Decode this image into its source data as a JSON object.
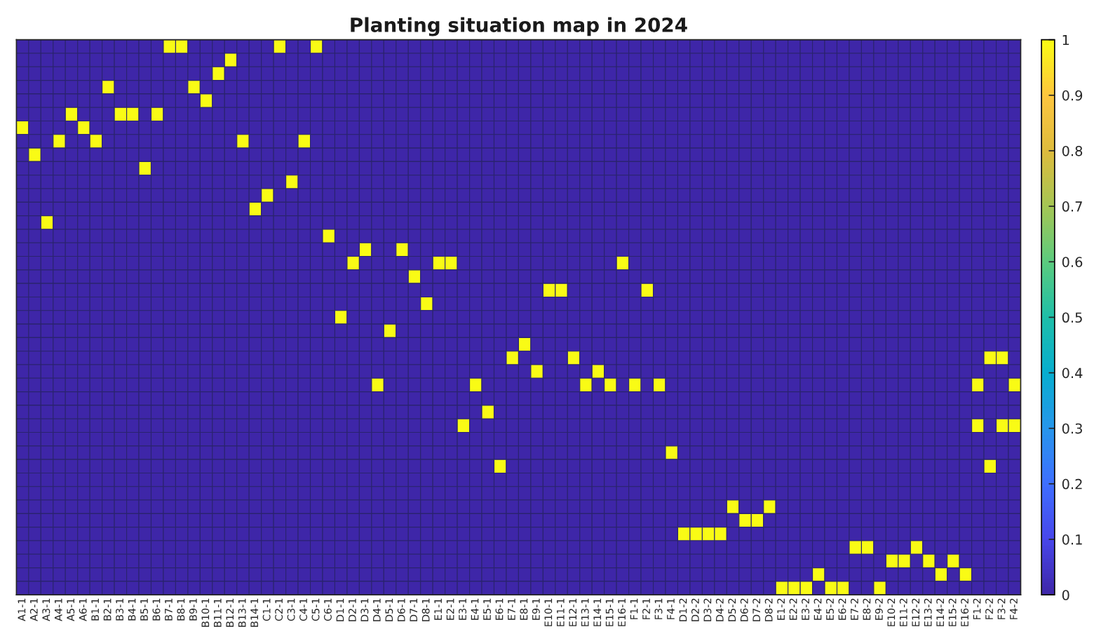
{
  "chart_data": {
    "type": "heatmap",
    "title": "Planting situation map in 2024",
    "categories": [
      "A1-1",
      "A2-1",
      "A3-1",
      "A4-1",
      "A5-1",
      "A6-1",
      "B1-1",
      "B2-1",
      "B3-1",
      "B4-1",
      "B5-1",
      "B6-1",
      "B7-1",
      "B8-1",
      "B9-1",
      "B10-1",
      "B11-1",
      "B12-1",
      "B13-1",
      "B14-1",
      "C1-1",
      "C2-1",
      "C3-1",
      "C4-1",
      "C5-1",
      "C6-1",
      "D1-1",
      "D2-1",
      "D3-1",
      "D4-1",
      "D5-1",
      "D6-1",
      "D7-1",
      "D8-1",
      "E1-1",
      "E2-1",
      "E3-1",
      "E4-1",
      "E5-1",
      "E6-1",
      "E7-1",
      "E8-1",
      "E9-1",
      "E10-1",
      "E11-1",
      "E12-1",
      "E13-1",
      "E14-1",
      "E15-1",
      "E16-1",
      "F1-1",
      "F2-1",
      "F3-1",
      "F4-1",
      "D1-2",
      "D2-2",
      "D3-2",
      "D4-2",
      "D5-2",
      "D6-2",
      "D7-2",
      "D8-2",
      "E1-2",
      "E2-2",
      "E3-2",
      "E4-2",
      "E5-2",
      "E6-2",
      "E7-2",
      "E8-2",
      "E9-2",
      "E10-2",
      "E11-2",
      "E12-2",
      "E13-2",
      "E14-2",
      "E15-2",
      "E16-2",
      "F1-2",
      "F2-2",
      "F3-2",
      "F4-2"
    ],
    "y_categories": [
      null,
      null,
      null,
      null,
      null,
      null,
      null,
      null,
      null,
      null,
      null,
      null,
      null,
      null,
      null,
      null,
      null,
      null,
      null,
      null,
      null,
      null,
      null,
      null,
      null,
      null,
      null,
      null,
      null,
      null,
      null,
      null,
      null,
      null,
      null,
      null,
      null,
      null,
      null,
      null,
      null
    ],
    "cells": [
      [
        0,
        0,
        0,
        0,
        0,
        0,
        0,
        0,
        0,
        0,
        0,
        0,
        1,
        1,
        0,
        0,
        0,
        0,
        0,
        0,
        0,
        1,
        0,
        0,
        1,
        0,
        0,
        0,
        0,
        0,
        0,
        0,
        0,
        0,
        0,
        0,
        0,
        0,
        0,
        0,
        0,
        0,
        0,
        0,
        0,
        0,
        0,
        0,
        0,
        0,
        0,
        0,
        0,
        0,
        0,
        0,
        0,
        0,
        0,
        0,
        0,
        0,
        0,
        0,
        0,
        0,
        0,
        0,
        0,
        0,
        0,
        0,
        0,
        0,
        0,
        0,
        0,
        0,
        0,
        0,
        0,
        0
      ],
      [
        0,
        0,
        0,
        0,
        0,
        0,
        0,
        0,
        0,
        0,
        0,
        0,
        0,
        0,
        0,
        0,
        0,
        1,
        0,
        0,
        0,
        0,
        0,
        0,
        0,
        0,
        0,
        0,
        0,
        0,
        0,
        0,
        0,
        0,
        0,
        0,
        0,
        0,
        0,
        0,
        0,
        0,
        0,
        0,
        0,
        0,
        0,
        0,
        0,
        0,
        0,
        0,
        0,
        0,
        0,
        0,
        0,
        0,
        0,
        0,
        0,
        0,
        0,
        0,
        0,
        0,
        0,
        0,
        0,
        0,
        0,
        0,
        0,
        0,
        0,
        0,
        0,
        0,
        0,
        0,
        0,
        0
      ],
      [
        0,
        0,
        0,
        0,
        0,
        0,
        0,
        0,
        0,
        0,
        0,
        0,
        0,
        0,
        0,
        0,
        1,
        0,
        0,
        0,
        0,
        0,
        0,
        0,
        0,
        0,
        0,
        0,
        0,
        0,
        0,
        0,
        0,
        0,
        0,
        0,
        0,
        0,
        0,
        0,
        0,
        0,
        0,
        0,
        0,
        0,
        0,
        0,
        0,
        0,
        0,
        0,
        0,
        0,
        0,
        0,
        0,
        0,
        0,
        0,
        0,
        0,
        0,
        0,
        0,
        0,
        0,
        0,
        0,
        0,
        0,
        0,
        0,
        0,
        0,
        0,
        0,
        0,
        0,
        0,
        0,
        0
      ],
      [
        0,
        0,
        0,
        0,
        0,
        0,
        0,
        1,
        0,
        0,
        0,
        0,
        0,
        0,
        1,
        0,
        0,
        0,
        0,
        0,
        0,
        0,
        0,
        0,
        0,
        0,
        0,
        0,
        0,
        0,
        0,
        0,
        0,
        0,
        0,
        0,
        0,
        0,
        0,
        0,
        0,
        0,
        0,
        0,
        0,
        0,
        0,
        0,
        0,
        0,
        0,
        0,
        0,
        0,
        0,
        0,
        0,
        0,
        0,
        0,
        0,
        0,
        0,
        0,
        0,
        0,
        0,
        0,
        0,
        0,
        0,
        0,
        0,
        0,
        0,
        0,
        0,
        0,
        0,
        0,
        0,
        0
      ],
      [
        0,
        0,
        0,
        0,
        0,
        0,
        0,
        0,
        0,
        0,
        0,
        0,
        0,
        0,
        0,
        1,
        0,
        0,
        0,
        0,
        0,
        0,
        0,
        0,
        0,
        0,
        0,
        0,
        0,
        0,
        0,
        0,
        0,
        0,
        0,
        0,
        0,
        0,
        0,
        0,
        0,
        0,
        0,
        0,
        0,
        0,
        0,
        0,
        0,
        0,
        0,
        0,
        0,
        0,
        0,
        0,
        0,
        0,
        0,
        0,
        0,
        0,
        0,
        0,
        0,
        0,
        0,
        0,
        0,
        0,
        0,
        0,
        0,
        0,
        0,
        0,
        0,
        0,
        0,
        0,
        0,
        0
      ],
      [
        0,
        0,
        0,
        0,
        1,
        0,
        0,
        0,
        1,
        1,
        0,
        1,
        0,
        0,
        0,
        0,
        0,
        0,
        0,
        0,
        0,
        0,
        0,
        0,
        0,
        0,
        0,
        0,
        0,
        0,
        0,
        0,
        0,
        0,
        0,
        0,
        0,
        0,
        0,
        0,
        0,
        0,
        0,
        0,
        0,
        0,
        0,
        0,
        0,
        0,
        0,
        0,
        0,
        0,
        0,
        0,
        0,
        0,
        0,
        0,
        0,
        0,
        0,
        0,
        0,
        0,
        0,
        0,
        0,
        0,
        0,
        0,
        0,
        0,
        0,
        0,
        0,
        0,
        0,
        0,
        0,
        0
      ],
      [
        1,
        0,
        0,
        0,
        0,
        1,
        0,
        0,
        0,
        0,
        0,
        0,
        0,
        0,
        0,
        0,
        0,
        0,
        0,
        0,
        0,
        0,
        0,
        0,
        0,
        0,
        0,
        0,
        0,
        0,
        0,
        0,
        0,
        0,
        0,
        0,
        0,
        0,
        0,
        0,
        0,
        0,
        0,
        0,
        0,
        0,
        0,
        0,
        0,
        0,
        0,
        0,
        0,
        0,
        0,
        0,
        0,
        0,
        0,
        0,
        0,
        0,
        0,
        0,
        0,
        0,
        0,
        0,
        0,
        0,
        0,
        0,
        0,
        0,
        0,
        0,
        0,
        0,
        0,
        0,
        0,
        0
      ],
      [
        0,
        0,
        0,
        1,
        0,
        0,
        1,
        0,
        0,
        0,
        0,
        0,
        0,
        0,
        0,
        0,
        0,
        0,
        1,
        0,
        0,
        0,
        0,
        1,
        0,
        0,
        0,
        0,
        0,
        0,
        0,
        0,
        0,
        0,
        0,
        0,
        0,
        0,
        0,
        0,
        0,
        0,
        0,
        0,
        0,
        0,
        0,
        0,
        0,
        0,
        0,
        0,
        0,
        0,
        0,
        0,
        0,
        0,
        0,
        0,
        0,
        0,
        0,
        0,
        0,
        0,
        0,
        0,
        0,
        0,
        0,
        0,
        0,
        0,
        0,
        0,
        0,
        0,
        0,
        0,
        0,
        0
      ],
      [
        0,
        1,
        0,
        0,
        0,
        0,
        0,
        0,
        0,
        0,
        0,
        0,
        0,
        0,
        0,
        0,
        0,
        0,
        0,
        0,
        0,
        0,
        0,
        0,
        0,
        0,
        0,
        0,
        0,
        0,
        0,
        0,
        0,
        0,
        0,
        0,
        0,
        0,
        0,
        0,
        0,
        0,
        0,
        0,
        0,
        0,
        0,
        0,
        0,
        0,
        0,
        0,
        0,
        0,
        0,
        0,
        0,
        0,
        0,
        0,
        0,
        0,
        0,
        0,
        0,
        0,
        0,
        0,
        0,
        0,
        0,
        0,
        0,
        0,
        0,
        0,
        0,
        0,
        0,
        0,
        0,
        0
      ],
      [
        0,
        0,
        0,
        0,
        0,
        0,
        0,
        0,
        0,
        0,
        1,
        0,
        0,
        0,
        0,
        0,
        0,
        0,
        0,
        0,
        0,
        0,
        0,
        0,
        0,
        0,
        0,
        0,
        0,
        0,
        0,
        0,
        0,
        0,
        0,
        0,
        0,
        0,
        0,
        0,
        0,
        0,
        0,
        0,
        0,
        0,
        0,
        0,
        0,
        0,
        0,
        0,
        0,
        0,
        0,
        0,
        0,
        0,
        0,
        0,
        0,
        0,
        0,
        0,
        0,
        0,
        0,
        0,
        0,
        0,
        0,
        0,
        0,
        0,
        0,
        0,
        0,
        0,
        0,
        0,
        0,
        0
      ],
      [
        0,
        0,
        0,
        0,
        0,
        0,
        0,
        0,
        0,
        0,
        0,
        0,
        0,
        0,
        0,
        0,
        0,
        0,
        0,
        0,
        0,
        0,
        1,
        0,
        0,
        0,
        0,
        0,
        0,
        0,
        0,
        0,
        0,
        0,
        0,
        0,
        0,
        0,
        0,
        0,
        0,
        0,
        0,
        0,
        0,
        0,
        0,
        0,
        0,
        0,
        0,
        0,
        0,
        0,
        0,
        0,
        0,
        0,
        0,
        0,
        0,
        0,
        0,
        0,
        0,
        0,
        0,
        0,
        0,
        0,
        0,
        0,
        0,
        0,
        0,
        0,
        0,
        0,
        0,
        0,
        0,
        0
      ],
      [
        0,
        0,
        0,
        0,
        0,
        0,
        0,
        0,
        0,
        0,
        0,
        0,
        0,
        0,
        0,
        0,
        0,
        0,
        0,
        0,
        1,
        0,
        0,
        0,
        0,
        0,
        0,
        0,
        0,
        0,
        0,
        0,
        0,
        0,
        0,
        0,
        0,
        0,
        0,
        0,
        0,
        0,
        0,
        0,
        0,
        0,
        0,
        0,
        0,
        0,
        0,
        0,
        0,
        0,
        0,
        0,
        0,
        0,
        0,
        0,
        0,
        0,
        0,
        0,
        0,
        0,
        0,
        0,
        0,
        0,
        0,
        0,
        0,
        0,
        0,
        0,
        0,
        0,
        0,
        0,
        0,
        0
      ],
      [
        0,
        0,
        0,
        0,
        0,
        0,
        0,
        0,
        0,
        0,
        0,
        0,
        0,
        0,
        0,
        0,
        0,
        0,
        0,
        1,
        0,
        0,
        0,
        0,
        0,
        0,
        0,
        0,
        0,
        0,
        0,
        0,
        0,
        0,
        0,
        0,
        0,
        0,
        0,
        0,
        0,
        0,
        0,
        0,
        0,
        0,
        0,
        0,
        0,
        0,
        0,
        0,
        0,
        0,
        0,
        0,
        0,
        0,
        0,
        0,
        0,
        0,
        0,
        0,
        0,
        0,
        0,
        0,
        0,
        0,
        0,
        0,
        0,
        0,
        0,
        0,
        0,
        0,
        0,
        0,
        0,
        0
      ],
      [
        0,
        0,
        1,
        0,
        0,
        0,
        0,
        0,
        0,
        0,
        0,
        0,
        0,
        0,
        0,
        0,
        0,
        0,
        0,
        0,
        0,
        0,
        0,
        0,
        0,
        0,
        0,
        0,
        0,
        0,
        0,
        0,
        0,
        0,
        0,
        0,
        0,
        0,
        0,
        0,
        0,
        0,
        0,
        0,
        0,
        0,
        0,
        0,
        0,
        0,
        0,
        0,
        0,
        0,
        0,
        0,
        0,
        0,
        0,
        0,
        0,
        0,
        0,
        0,
        0,
        0,
        0,
        0,
        0,
        0,
        0,
        0,
        0,
        0,
        0,
        0,
        0,
        0,
        0,
        0,
        0,
        0
      ],
      [
        0,
        0,
        0,
        0,
        0,
        0,
        0,
        0,
        0,
        0,
        0,
        0,
        0,
        0,
        0,
        0,
        0,
        0,
        0,
        0,
        0,
        0,
        0,
        0,
        0,
        1,
        0,
        0,
        0,
        0,
        0,
        0,
        0,
        0,
        0,
        0,
        0,
        0,
        0,
        0,
        0,
        0,
        0,
        0,
        0,
        0,
        0,
        0,
        0,
        0,
        0,
        0,
        0,
        0,
        0,
        0,
        0,
        0,
        0,
        0,
        0,
        0,
        0,
        0,
        0,
        0,
        0,
        0,
        0,
        0,
        0,
        0,
        0,
        0,
        0,
        0,
        0,
        0,
        0,
        0,
        0,
        0
      ],
      [
        0,
        0,
        0,
        0,
        0,
        0,
        0,
        0,
        0,
        0,
        0,
        0,
        0,
        0,
        0,
        0,
        0,
        0,
        0,
        0,
        0,
        0,
        0,
        0,
        0,
        0,
        0,
        0,
        1,
        0,
        0,
        1,
        0,
        0,
        0,
        0,
        0,
        0,
        0,
        0,
        0,
        0,
        0,
        0,
        0,
        0,
        0,
        0,
        0,
        0,
        0,
        0,
        0,
        0,
        0,
        0,
        0,
        0,
        0,
        0,
        0,
        0,
        0,
        0,
        0,
        0,
        0,
        0,
        0,
        0,
        0,
        0,
        0,
        0,
        0,
        0,
        0,
        0,
        0,
        0,
        0,
        0
      ],
      [
        0,
        0,
        0,
        0,
        0,
        0,
        0,
        0,
        0,
        0,
        0,
        0,
        0,
        0,
        0,
        0,
        0,
        0,
        0,
        0,
        0,
        0,
        0,
        0,
        0,
        0,
        0,
        1,
        0,
        0,
        0,
        0,
        0,
        0,
        1,
        1,
        0,
        0,
        0,
        0,
        0,
        0,
        0,
        0,
        0,
        0,
        0,
        0,
        0,
        1,
        0,
        0,
        0,
        0,
        0,
        0,
        0,
        0,
        0,
        0,
        0,
        0,
        0,
        0,
        0,
        0,
        0,
        0,
        0,
        0,
        0,
        0,
        0,
        0,
        0,
        0,
        0,
        0,
        0,
        0,
        0,
        0
      ],
      [
        0,
        0,
        0,
        0,
        0,
        0,
        0,
        0,
        0,
        0,
        0,
        0,
        0,
        0,
        0,
        0,
        0,
        0,
        0,
        0,
        0,
        0,
        0,
        0,
        0,
        0,
        0,
        0,
        0,
        0,
        0,
        0,
        1,
        0,
        0,
        0,
        0,
        0,
        0,
        0,
        0,
        0,
        0,
        0,
        0,
        0,
        0,
        0,
        0,
        0,
        0,
        0,
        0,
        0,
        0,
        0,
        0,
        0,
        0,
        0,
        0,
        0,
        0,
        0,
        0,
        0,
        0,
        0,
        0,
        0,
        0,
        0,
        0,
        0,
        0,
        0,
        0,
        0,
        0,
        0,
        0,
        0
      ],
      [
        0,
        0,
        0,
        0,
        0,
        0,
        0,
        0,
        0,
        0,
        0,
        0,
        0,
        0,
        0,
        0,
        0,
        0,
        0,
        0,
        0,
        0,
        0,
        0,
        0,
        0,
        0,
        0,
        0,
        0,
        0,
        0,
        0,
        0,
        0,
        0,
        0,
        0,
        0,
        0,
        0,
        0,
        0,
        1,
        1,
        0,
        0,
        0,
        0,
        0,
        0,
        1,
        0,
        0,
        0,
        0,
        0,
        0,
        0,
        0,
        0,
        0,
        0,
        0,
        0,
        0,
        0,
        0,
        0,
        0,
        0,
        0,
        0,
        0,
        0,
        0,
        0,
        0,
        0,
        0,
        0,
        0
      ],
      [
        0,
        0,
        0,
        0,
        0,
        0,
        0,
        0,
        0,
        0,
        0,
        0,
        0,
        0,
        0,
        0,
        0,
        0,
        0,
        0,
        0,
        0,
        0,
        0,
        0,
        0,
        0,
        0,
        0,
        0,
        0,
        0,
        0,
        1,
        0,
        0,
        0,
        0,
        0,
        0,
        0,
        0,
        0,
        0,
        0,
        0,
        0,
        0,
        0,
        0,
        0,
        0,
        0,
        0,
        0,
        0,
        0,
        0,
        0,
        0,
        0,
        0,
        0,
        0,
        0,
        0,
        0,
        0,
        0,
        0,
        0,
        0,
        0,
        0,
        0,
        0,
        0,
        0,
        0,
        0,
        0,
        0
      ],
      [
        0,
        0,
        0,
        0,
        0,
        0,
        0,
        0,
        0,
        0,
        0,
        0,
        0,
        0,
        0,
        0,
        0,
        0,
        0,
        0,
        0,
        0,
        0,
        0,
        0,
        0,
        1,
        0,
        0,
        0,
        0,
        0,
        0,
        0,
        0,
        0,
        0,
        0,
        0,
        0,
        0,
        0,
        0,
        0,
        0,
        0,
        0,
        0,
        0,
        0,
        0,
        0,
        0,
        0,
        0,
        0,
        0,
        0,
        0,
        0,
        0,
        0,
        0,
        0,
        0,
        0,
        0,
        0,
        0,
        0,
        0,
        0,
        0,
        0,
        0,
        0,
        0,
        0,
        0,
        0,
        0,
        0
      ],
      [
        0,
        0,
        0,
        0,
        0,
        0,
        0,
        0,
        0,
        0,
        0,
        0,
        0,
        0,
        0,
        0,
        0,
        0,
        0,
        0,
        0,
        0,
        0,
        0,
        0,
        0,
        0,
        0,
        0,
        0,
        1,
        0,
        0,
        0,
        0,
        0,
        0,
        0,
        0,
        0,
        0,
        0,
        0,
        0,
        0,
        0,
        0,
        0,
        0,
        0,
        0,
        0,
        0,
        0,
        0,
        0,
        0,
        0,
        0,
        0,
        0,
        0,
        0,
        0,
        0,
        0,
        0,
        0,
        0,
        0,
        0,
        0,
        0,
        0,
        0,
        0,
        0,
        0,
        0,
        0,
        0,
        0
      ],
      [
        0,
        0,
        0,
        0,
        0,
        0,
        0,
        0,
        0,
        0,
        0,
        0,
        0,
        0,
        0,
        0,
        0,
        0,
        0,
        0,
        0,
        0,
        0,
        0,
        0,
        0,
        0,
        0,
        0,
        0,
        0,
        0,
        0,
        0,
        0,
        0,
        0,
        0,
        0,
        0,
        0,
        1,
        0,
        0,
        0,
        0,
        0,
        0,
        0,
        0,
        0,
        0,
        0,
        0,
        0,
        0,
        0,
        0,
        0,
        0,
        0,
        0,
        0,
        0,
        0,
        0,
        0,
        0,
        0,
        0,
        0,
        0,
        0,
        0,
        0,
        0,
        0,
        0,
        0,
        0,
        0,
        0
      ],
      [
        0,
        0,
        0,
        0,
        0,
        0,
        0,
        0,
        0,
        0,
        0,
        0,
        0,
        0,
        0,
        0,
        0,
        0,
        0,
        0,
        0,
        0,
        0,
        0,
        0,
        0,
        0,
        0,
        0,
        0,
        0,
        0,
        0,
        0,
        0,
        0,
        0,
        0,
        0,
        0,
        1,
        0,
        0,
        0,
        0,
        1,
        0,
        0,
        0,
        0,
        0,
        0,
        0,
        0,
        0,
        0,
        0,
        0,
        0,
        0,
        0,
        0,
        0,
        0,
        0,
        0,
        0,
        0,
        0,
        0,
        0,
        0,
        0,
        0,
        0,
        0,
        0,
        0,
        0,
        1,
        1,
        0
      ],
      [
        0,
        0,
        0,
        0,
        0,
        0,
        0,
        0,
        0,
        0,
        0,
        0,
        0,
        0,
        0,
        0,
        0,
        0,
        0,
        0,
        0,
        0,
        0,
        0,
        0,
        0,
        0,
        0,
        0,
        0,
        0,
        0,
        0,
        0,
        0,
        0,
        0,
        0,
        0,
        0,
        0,
        0,
        1,
        0,
        0,
        0,
        0,
        1,
        0,
        0,
        0,
        0,
        0,
        0,
        0,
        0,
        0,
        0,
        0,
        0,
        0,
        0,
        0,
        0,
        0,
        0,
        0,
        0,
        0,
        0,
        0,
        0,
        0,
        0,
        0,
        0,
        0,
        0,
        0,
        0,
        0,
        0
      ],
      [
        0,
        0,
        0,
        0,
        0,
        0,
        0,
        0,
        0,
        0,
        0,
        0,
        0,
        0,
        0,
        0,
        0,
        0,
        0,
        0,
        0,
        0,
        0,
        0,
        0,
        0,
        0,
        0,
        0,
        1,
        0,
        0,
        0,
        0,
        0,
        0,
        0,
        1,
        0,
        0,
        0,
        0,
        0,
        0,
        0,
        0,
        1,
        0,
        1,
        0,
        1,
        0,
        1,
        0,
        0,
        0,
        0,
        0,
        0,
        0,
        0,
        0,
        0,
        0,
        0,
        0,
        0,
        0,
        0,
        0,
        0,
        0,
        0,
        0,
        0,
        0,
        0,
        0,
        1,
        0,
        0,
        1
      ],
      [
        0,
        0,
        0,
        0,
        0,
        0,
        0,
        0,
        0,
        0,
        0,
        0,
        0,
        0,
        0,
        0,
        0,
        0,
        0,
        0,
        0,
        0,
        0,
        0,
        0,
        0,
        0,
        0,
        0,
        0,
        0,
        0,
        0,
        0,
        0,
        0,
        0,
        0,
        0,
        0,
        0,
        0,
        0,
        0,
        0,
        0,
        0,
        0,
        0,
        0,
        0,
        0,
        0,
        0,
        0,
        0,
        0,
        0,
        0,
        0,
        0,
        0,
        0,
        0,
        0,
        0,
        0,
        0,
        0,
        0,
        0,
        0,
        0,
        0,
        0,
        0,
        0,
        0,
        0,
        0,
        0,
        0
      ],
      [
        0,
        0,
        0,
        0,
        0,
        0,
        0,
        0,
        0,
        0,
        0,
        0,
        0,
        0,
        0,
        0,
        0,
        0,
        0,
        0,
        0,
        0,
        0,
        0,
        0,
        0,
        0,
        0,
        0,
        0,
        0,
        0,
        0,
        0,
        0,
        0,
        0,
        0,
        1,
        0,
        0,
        0,
        0,
        0,
        0,
        0,
        0,
        0,
        0,
        0,
        0,
        0,
        0,
        0,
        0,
        0,
        0,
        0,
        0,
        0,
        0,
        0,
        0,
        0,
        0,
        0,
        0,
        0,
        0,
        0,
        0,
        0,
        0,
        0,
        0,
        0,
        0,
        0,
        0,
        0,
        0,
        0
      ],
      [
        0,
        0,
        0,
        0,
        0,
        0,
        0,
        0,
        0,
        0,
        0,
        0,
        0,
        0,
        0,
        0,
        0,
        0,
        0,
        0,
        0,
        0,
        0,
        0,
        0,
        0,
        0,
        0,
        0,
        0,
        0,
        0,
        0,
        0,
        0,
        0,
        1,
        0,
        0,
        0,
        0,
        0,
        0,
        0,
        0,
        0,
        0,
        0,
        0,
        0,
        0,
        0,
        0,
        0,
        0,
        0,
        0,
        0,
        0,
        0,
        0,
        0,
        0,
        0,
        0,
        0,
        0,
        0,
        0,
        0,
        0,
        0,
        0,
        0,
        0,
        0,
        0,
        0,
        1,
        0,
        1,
        1
      ],
      [
        0,
        0,
        0,
        0,
        0,
        0,
        0,
        0,
        0,
        0,
        0,
        0,
        0,
        0,
        0,
        0,
        0,
        0,
        0,
        0,
        0,
        0,
        0,
        0,
        0,
        0,
        0,
        0,
        0,
        0,
        0,
        0,
        0,
        0,
        0,
        0,
        0,
        0,
        0,
        0,
        0,
        0,
        0,
        0,
        0,
        0,
        0,
        0,
        0,
        0,
        0,
        0,
        0,
        0,
        0,
        0,
        0,
        0,
        0,
        0,
        0,
        0,
        0,
        0,
        0,
        0,
        0,
        0,
        0,
        0,
        0,
        0,
        0,
        0,
        0,
        0,
        0,
        0,
        0,
        0,
        0,
        0
      ],
      [
        0,
        0,
        0,
        0,
        0,
        0,
        0,
        0,
        0,
        0,
        0,
        0,
        0,
        0,
        0,
        0,
        0,
        0,
        0,
        0,
        0,
        0,
        0,
        0,
        0,
        0,
        0,
        0,
        0,
        0,
        0,
        0,
        0,
        0,
        0,
        0,
        0,
        0,
        0,
        0,
        0,
        0,
        0,
        0,
        0,
        0,
        0,
        0,
        0,
        0,
        0,
        0,
        0,
        1,
        0,
        0,
        0,
        0,
        0,
        0,
        0,
        0,
        0,
        0,
        0,
        0,
        0,
        0,
        0,
        0,
        0,
        0,
        0,
        0,
        0,
        0,
        0,
        0,
        0,
        0,
        0,
        0
      ],
      [
        0,
        0,
        0,
        0,
        0,
        0,
        0,
        0,
        0,
        0,
        0,
        0,
        0,
        0,
        0,
        0,
        0,
        0,
        0,
        0,
        0,
        0,
        0,
        0,
        0,
        0,
        0,
        0,
        0,
        0,
        0,
        0,
        0,
        0,
        0,
        0,
        0,
        0,
        0,
        1,
        0,
        0,
        0,
        0,
        0,
        0,
        0,
        0,
        0,
        0,
        0,
        0,
        0,
        0,
        0,
        0,
        0,
        0,
        0,
        0,
        0,
        0,
        0,
        0,
        0,
        0,
        0,
        0,
        0,
        0,
        0,
        0,
        0,
        0,
        0,
        0,
        0,
        0,
        0,
        1,
        0,
        0
      ],
      [
        0,
        0,
        0,
        0,
        0,
        0,
        0,
        0,
        0,
        0,
        0,
        0,
        0,
        0,
        0,
        0,
        0,
        0,
        0,
        0,
        0,
        0,
        0,
        0,
        0,
        0,
        0,
        0,
        0,
        0,
        0,
        0,
        0,
        0,
        0,
        0,
        0,
        0,
        0,
        0,
        0,
        0,
        0,
        0,
        0,
        0,
        0,
        0,
        0,
        0,
        0,
        0,
        0,
        0,
        0,
        0,
        0,
        0,
        0,
        0,
        0,
        0,
        0,
        0,
        0,
        0,
        0,
        0,
        0,
        0,
        0,
        0,
        0,
        0,
        0,
        0,
        0,
        0,
        0,
        0,
        0,
        0
      ],
      [
        0,
        0,
        0,
        0,
        0,
        0,
        0,
        0,
        0,
        0,
        0,
        0,
        0,
        0,
        0,
        0,
        0,
        0,
        0,
        0,
        0,
        0,
        0,
        0,
        0,
        0,
        0,
        0,
        0,
        0,
        0,
        0,
        0,
        0,
        0,
        0,
        0,
        0,
        0,
        0,
        0,
        0,
        0,
        0,
        0,
        0,
        0,
        0,
        0,
        0,
        0,
        0,
        0,
        0,
        0,
        0,
        0,
        0,
        0,
        0,
        0,
        0,
        0,
        0,
        0,
        0,
        0,
        0,
        0,
        0,
        0,
        0,
        0,
        0,
        0,
        0,
        0,
        0,
        0,
        0,
        0,
        0
      ],
      [
        0,
        0,
        0,
        0,
        0,
        0,
        0,
        0,
        0,
        0,
        0,
        0,
        0,
        0,
        0,
        0,
        0,
        0,
        0,
        0,
        0,
        0,
        0,
        0,
        0,
        0,
        0,
        0,
        0,
        0,
        0,
        0,
        0,
        0,
        0,
        0,
        0,
        0,
        0,
        0,
        0,
        0,
        0,
        0,
        0,
        0,
        0,
        0,
        0,
        0,
        0,
        0,
        0,
        0,
        0,
        0,
        0,
        0,
        1,
        0,
        0,
        1,
        0,
        0,
        0,
        0,
        0,
        0,
        0,
        0,
        0,
        0,
        0,
        0,
        0,
        0,
        0,
        0,
        0,
        0,
        0,
        0
      ],
      [
        0,
        0,
        0,
        0,
        0,
        0,
        0,
        0,
        0,
        0,
        0,
        0,
        0,
        0,
        0,
        0,
        0,
        0,
        0,
        0,
        0,
        0,
        0,
        0,
        0,
        0,
        0,
        0,
        0,
        0,
        0,
        0,
        0,
        0,
        0,
        0,
        0,
        0,
        0,
        0,
        0,
        0,
        0,
        0,
        0,
        0,
        0,
        0,
        0,
        0,
        0,
        0,
        0,
        0,
        0,
        0,
        0,
        0,
        0,
        1,
        1,
        0,
        0,
        0,
        0,
        0,
        0,
        0,
        0,
        0,
        0,
        0,
        0,
        0,
        0,
        0,
        0,
        0,
        0,
        0,
        0,
        0
      ],
      [
        0,
        0,
        0,
        0,
        0,
        0,
        0,
        0,
        0,
        0,
        0,
        0,
        0,
        0,
        0,
        0,
        0,
        0,
        0,
        0,
        0,
        0,
        0,
        0,
        0,
        0,
        0,
        0,
        0,
        0,
        0,
        0,
        0,
        0,
        0,
        0,
        0,
        0,
        0,
        0,
        0,
        0,
        0,
        0,
        0,
        0,
        0,
        0,
        0,
        0,
        0,
        0,
        0,
        0,
        1,
        1,
        1,
        1,
        0,
        0,
        0,
        0,
        0,
        0,
        0,
        0,
        0,
        0,
        0,
        0,
        0,
        0,
        0,
        0,
        0,
        0,
        0,
        0,
        0,
        0,
        0,
        0
      ],
      [
        0,
        0,
        0,
        0,
        0,
        0,
        0,
        0,
        0,
        0,
        0,
        0,
        0,
        0,
        0,
        0,
        0,
        0,
        0,
        0,
        0,
        0,
        0,
        0,
        0,
        0,
        0,
        0,
        0,
        0,
        0,
        0,
        0,
        0,
        0,
        0,
        0,
        0,
        0,
        0,
        0,
        0,
        0,
        0,
        0,
        0,
        0,
        0,
        0,
        0,
        0,
        0,
        0,
        0,
        0,
        0,
        0,
        0,
        0,
        0,
        0,
        0,
        0,
        0,
        0,
        0,
        0,
        0,
        1,
        1,
        0,
        0,
        0,
        1,
        0,
        0,
        0,
        0,
        0,
        0,
        0,
        0
      ],
      [
        0,
        0,
        0,
        0,
        0,
        0,
        0,
        0,
        0,
        0,
        0,
        0,
        0,
        0,
        0,
        0,
        0,
        0,
        0,
        0,
        0,
        0,
        0,
        0,
        0,
        0,
        0,
        0,
        0,
        0,
        0,
        0,
        0,
        0,
        0,
        0,
        0,
        0,
        0,
        0,
        0,
        0,
        0,
        0,
        0,
        0,
        0,
        0,
        0,
        0,
        0,
        0,
        0,
        0,
        0,
        0,
        0,
        0,
        0,
        0,
        0,
        0,
        0,
        0,
        0,
        0,
        0,
        0,
        0,
        0,
        0,
        1,
        1,
        0,
        1,
        0,
        1,
        0,
        0,
        0,
        0,
        0
      ],
      [
        0,
        0,
        0,
        0,
        0,
        0,
        0,
        0,
        0,
        0,
        0,
        0,
        0,
        0,
        0,
        0,
        0,
        0,
        0,
        0,
        0,
        0,
        0,
        0,
        0,
        0,
        0,
        0,
        0,
        0,
        0,
        0,
        0,
        0,
        0,
        0,
        0,
        0,
        0,
        0,
        0,
        0,
        0,
        0,
        0,
        0,
        0,
        0,
        0,
        0,
        0,
        0,
        0,
        0,
        0,
        0,
        0,
        0,
        0,
        0,
        0,
        0,
        0,
        0,
        0,
        1,
        0,
        0,
        0,
        0,
        0,
        0,
        0,
        0,
        0,
        1,
        0,
        1,
        0,
        0,
        0,
        0
      ],
      [
        0,
        0,
        0,
        0,
        0,
        0,
        0,
        0,
        0,
        0,
        0,
        0,
        0,
        0,
        0,
        0,
        0,
        0,
        0,
        0,
        0,
        0,
        0,
        0,
        0,
        0,
        0,
        0,
        0,
        0,
        0,
        0,
        0,
        0,
        0,
        0,
        0,
        0,
        0,
        0,
        0,
        0,
        0,
        0,
        0,
        0,
        0,
        0,
        0,
        0,
        0,
        0,
        0,
        0,
        0,
        0,
        0,
        0,
        0,
        0,
        0,
        0,
        1,
        1,
        1,
        0,
        1,
        1,
        0,
        0,
        1,
        0,
        0,
        0,
        0,
        0,
        0,
        0,
        0,
        0,
        0,
        0
      ]
    ],
    "clim": [
      0,
      1
    ],
    "cticks": [
      0,
      0.1,
      0.2,
      0.3,
      0.4,
      0.5,
      0.6,
      0.7,
      0.8,
      0.9,
      1
    ]
  }
}
